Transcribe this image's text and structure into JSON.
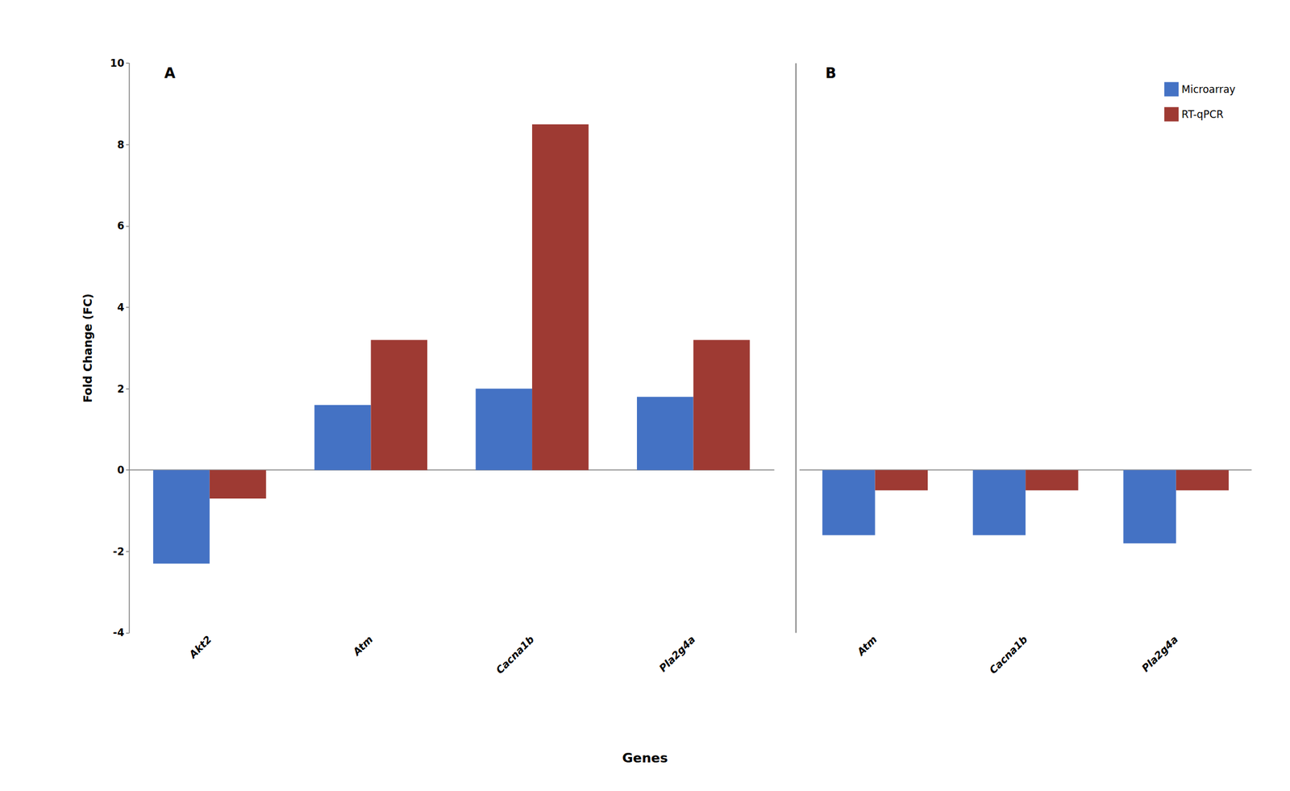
{
  "chart_data": [
    {
      "type": "bar",
      "title": "A",
      "xlabel": "Genes",
      "ylabel": "Fold Change (FC)",
      "categories": [
        "Akt2",
        "Atm",
        "Cacna1b",
        "Pla2g4a"
      ],
      "series": [
        {
          "name": "Microarray",
          "color": "#4472C4",
          "values": [
            -2.3,
            1.6,
            2.0,
            1.8
          ]
        },
        {
          "name": "RT-qPCR",
          "color": "#9E3A33",
          "values": [
            -0.7,
            3.2,
            8.5,
            3.2
          ]
        }
      ],
      "ylim": [
        -4,
        10
      ],
      "yticks": [
        -4,
        -2,
        0,
        2,
        4,
        6,
        8,
        10
      ],
      "grid": false
    },
    {
      "type": "bar",
      "title": "B",
      "categories": [
        "Atm",
        "Cacna1b",
        "Pla2g4a"
      ],
      "series": [
        {
          "name": "Microarray",
          "color": "#4472C4",
          "values": [
            -1.6,
            -1.6,
            -1.8
          ]
        },
        {
          "name": "RT-qPCR",
          "color": "#9E3A33",
          "values": [
            -0.5,
            -0.5,
            -0.5
          ]
        }
      ],
      "ylim": [
        -4,
        10
      ],
      "yticks": [
        -4,
        -2,
        0,
        2,
        4,
        6,
        8,
        10
      ],
      "grid": false,
      "tick_labels": "x",
      "legend": "upper right"
    }
  ]
}
